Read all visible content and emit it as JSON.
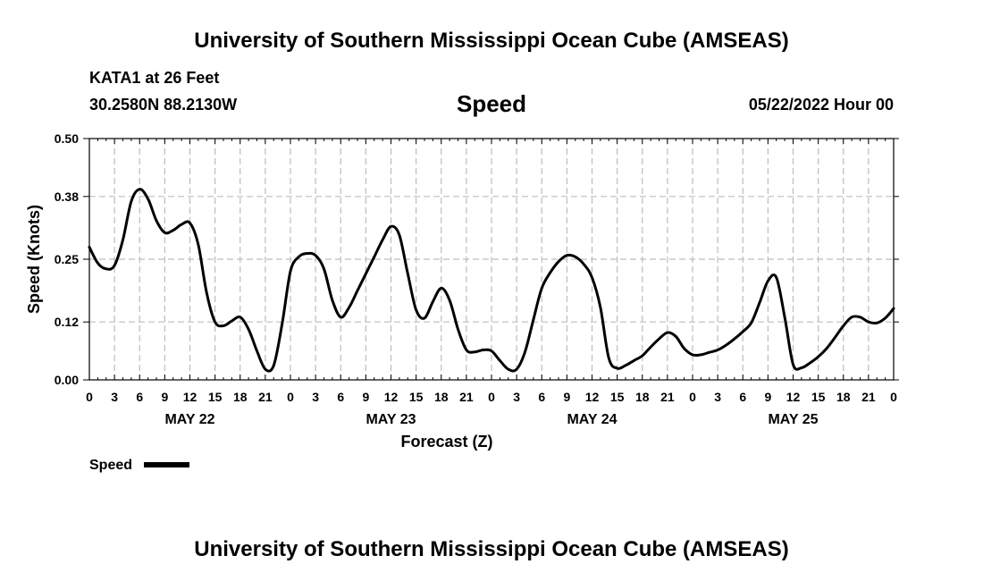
{
  "page": {
    "title_top": "University of Southern Mississippi Ocean Cube (AMSEAS)",
    "title_bottom": "University of Southern Mississippi Ocean Cube (AMSEAS)",
    "station": "KATA1 at 26 Feet",
    "coords": "30.2580N  88.2130W",
    "chart_title": "Speed",
    "datetime": "05/22/2022 Hour 00"
  },
  "chart_data": {
    "type": "line",
    "title": "Speed",
    "xlabel": "Forecast (Z)",
    "ylabel": "Speed (Knots)",
    "xlim": [
      0,
      96
    ],
    "ylim": [
      0,
      0.5
    ],
    "yticks": [
      0.0,
      0.12,
      0.25,
      0.38,
      0.5
    ],
    "ytick_labels": [
      "0.00",
      "0.12",
      "0.25",
      "0.38",
      "0.50"
    ],
    "xticks": [
      0,
      3,
      6,
      9,
      12,
      15,
      18,
      21,
      24,
      27,
      30,
      33,
      36,
      39,
      42,
      45,
      48,
      51,
      54,
      57,
      60,
      63,
      66,
      69,
      72,
      75,
      78,
      81,
      84,
      87,
      90,
      93,
      96
    ],
    "xtick_labels": [
      "0",
      "3",
      "6",
      "9",
      "12",
      "15",
      "18",
      "21",
      "0",
      "3",
      "6",
      "9",
      "12",
      "15",
      "18",
      "21",
      "0",
      "3",
      "6",
      "9",
      "12",
      "15",
      "18",
      "21",
      "0",
      "3",
      "6",
      "9",
      "12",
      "15",
      "18",
      "21",
      "0"
    ],
    "day_labels": [
      {
        "label": "MAY 22",
        "hour": 12
      },
      {
        "label": "MAY 23",
        "hour": 36
      },
      {
        "label": "MAY 24",
        "hour": 60
      },
      {
        "label": "MAY 25",
        "hour": 84
      }
    ],
    "grid": true,
    "legend": [
      {
        "name": "Speed",
        "color": "#000000"
      }
    ],
    "series": [
      {
        "name": "Speed",
        "color": "#000000",
        "x": [
          0,
          1,
          2,
          3,
          4,
          5,
          6,
          7,
          8,
          9,
          10,
          11,
          12,
          13,
          14,
          15,
          16,
          17,
          18,
          19,
          20,
          21,
          22,
          23,
          24,
          25,
          26,
          27,
          28,
          29,
          30,
          31,
          32,
          33,
          34,
          35,
          36,
          37,
          38,
          39,
          40,
          41,
          42,
          43,
          44,
          45,
          46,
          47,
          48,
          49,
          50,
          51,
          52,
          53,
          54,
          55,
          56,
          57,
          58,
          59,
          60,
          61,
          62,
          63,
          64,
          65,
          66,
          67,
          68,
          69,
          70,
          71,
          72,
          73,
          74,
          75,
          76,
          77,
          78,
          79,
          80,
          81,
          82,
          83,
          84,
          85,
          86,
          87,
          88,
          89,
          90,
          91,
          92,
          93,
          94,
          95,
          96
        ],
        "values": [
          0.275,
          0.242,
          0.23,
          0.237,
          0.29,
          0.37,
          0.395,
          0.375,
          0.33,
          0.305,
          0.31,
          0.322,
          0.325,
          0.28,
          0.18,
          0.12,
          0.112,
          0.122,
          0.13,
          0.105,
          0.06,
          0.022,
          0.03,
          0.115,
          0.225,
          0.255,
          0.262,
          0.258,
          0.23,
          0.165,
          0.13,
          0.15,
          0.185,
          0.22,
          0.255,
          0.29,
          0.318,
          0.3,
          0.22,
          0.145,
          0.128,
          0.162,
          0.19,
          0.165,
          0.105,
          0.062,
          0.058,
          0.062,
          0.06,
          0.04,
          0.022,
          0.022,
          0.058,
          0.125,
          0.19,
          0.222,
          0.245,
          0.258,
          0.255,
          0.24,
          0.212,
          0.15,
          0.045,
          0.024,
          0.03,
          0.04,
          0.05,
          0.068,
          0.085,
          0.098,
          0.09,
          0.065,
          0.052,
          0.052,
          0.057,
          0.062,
          0.072,
          0.085,
          0.1,
          0.118,
          0.16,
          0.205,
          0.212,
          0.13,
          0.032,
          0.025,
          0.035,
          0.048,
          0.065,
          0.088,
          0.112,
          0.13,
          0.13,
          0.12,
          0.118,
          0.128,
          0.148
        ]
      }
    ]
  }
}
